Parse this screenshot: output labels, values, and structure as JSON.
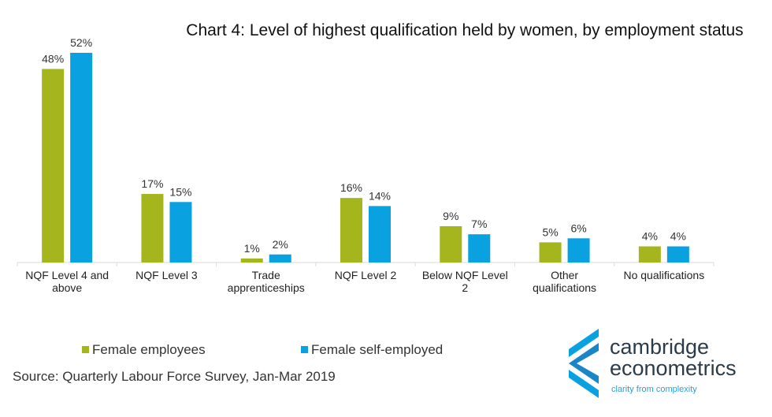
{
  "chart_data": {
    "type": "bar",
    "title": "Chart 4: Level of highest qualification held by women, by employment status",
    "categories": [
      [
        "NQF Level 4 and",
        "above"
      ],
      [
        "NQF Level 3"
      ],
      [
        "Trade",
        "apprenticeships"
      ],
      [
        "NQF Level 2"
      ],
      [
        "Below NQF Level",
        "2"
      ],
      [
        "Other",
        "qualifications"
      ],
      [
        "No qualifications"
      ]
    ],
    "series": [
      {
        "name": "Female employees",
        "color": "#a5b51d",
        "values": [
          48,
          17,
          1,
          16,
          9,
          5,
          4
        ],
        "labels": [
          "48%",
          "17%",
          "1%",
          "16%",
          "9%",
          "5%",
          "4%"
        ]
      },
      {
        "name": "Female self-employed",
        "color": "#0aa1e1",
        "values": [
          52,
          15,
          2,
          14,
          7,
          6,
          4
        ],
        "labels": [
          "52%",
          "15%",
          "2%",
          "14%",
          "7%",
          "6%",
          "4%"
        ]
      }
    ],
    "ylim": [
      0,
      52
    ],
    "grid": false,
    "legend": "bottom"
  },
  "source": "Source: Quarterly Labour Force Survey, Jan-Mar 2019",
  "logo": {
    "name_line1": "cambridge",
    "name_line2": "econometrics",
    "tagline": "clarity from complexity",
    "icon": "cambridge-econometrics-logo-icon"
  }
}
